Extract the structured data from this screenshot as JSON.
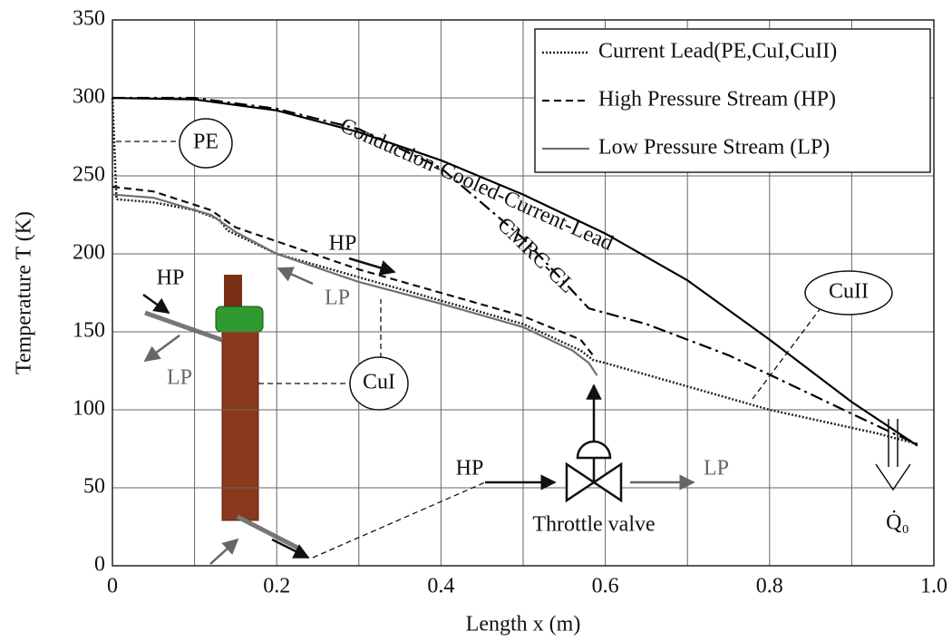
{
  "chart_data": {
    "type": "line",
    "xlabel": "Length x (m)",
    "ylabel": "Temperature T (K)",
    "xlim": [
      0,
      1
    ],
    "ylim": [
      0,
      350
    ],
    "xticks": [
      0,
      0.2,
      0.4,
      0.6,
      0.8,
      {
        "value": 1,
        "label": "1.0"
      }
    ],
    "yticks": [
      0,
      50,
      100,
      150,
      200,
      250,
      300,
      350
    ],
    "grid": true,
    "legend": "upper right",
    "series": [
      {
        "name": "Current Lead(PE,CuI,CuII)",
        "color": "#222222",
        "dash": "dotted",
        "x": [
          0,
          0.005,
          0.05,
          0.1,
          0.13,
          0.14,
          0.2,
          0.3,
          0.4,
          0.5,
          0.57,
          0.585,
          0.6,
          0.7,
          0.8,
          0.93,
          0.98
        ],
        "values": [
          300,
          235,
          233,
          228,
          222,
          215,
          200,
          185,
          170,
          155,
          138,
          132,
          130,
          115,
          100,
          85,
          78
        ]
      },
      {
        "name": "High Pressure Stream (HP)",
        "color": "#111111",
        "dash": "dashed",
        "x": [
          0,
          0.05,
          0.12,
          0.15,
          0.2,
          0.3,
          0.4,
          0.5,
          0.57,
          0.585
        ],
        "values": [
          243,
          240,
          228,
          217,
          208,
          190,
          175,
          160,
          145,
          135
        ]
      },
      {
        "name": "Low  Pressure Stream (LP)",
        "color": "#707070",
        "dash": "solid",
        "x": [
          0,
          0.05,
          0.12,
          0.15,
          0.2,
          0.3,
          0.4,
          0.5,
          0.56,
          0.58,
          0.59
        ],
        "values": [
          238,
          236,
          225,
          214,
          200,
          182,
          168,
          153,
          138,
          130,
          122
        ]
      }
    ],
    "curves": [
      {
        "name": "Conduction-Cooled-Current-Lead",
        "color": "#000000",
        "dash": "solid",
        "x": [
          0,
          0.1,
          0.2,
          0.3,
          0.4,
          0.5,
          0.6,
          0.7,
          0.8,
          0.9,
          0.98
        ],
        "values": [
          300,
          299,
          292,
          278,
          260,
          238,
          213,
          183,
          145,
          105,
          77
        ]
      },
      {
        "name": "CMRC-CL",
        "color": "#000000",
        "dash": "dashdot",
        "x": [
          0,
          0.1,
          0.2,
          0.3,
          0.4,
          0.5,
          0.58,
          0.65,
          0.75,
          0.85,
          0.95,
          0.98
        ],
        "values": [
          300,
          300,
          293,
          280,
          255,
          210,
          165,
          155,
          135,
          110,
          85,
          78
        ]
      }
    ],
    "annotations": [
      "PE",
      "CuI",
      "CuII",
      "HP",
      "LP",
      "HP",
      "LP",
      "HP",
      "LP",
      "Throttle valve",
      "Q̇₀"
    ]
  }
}
